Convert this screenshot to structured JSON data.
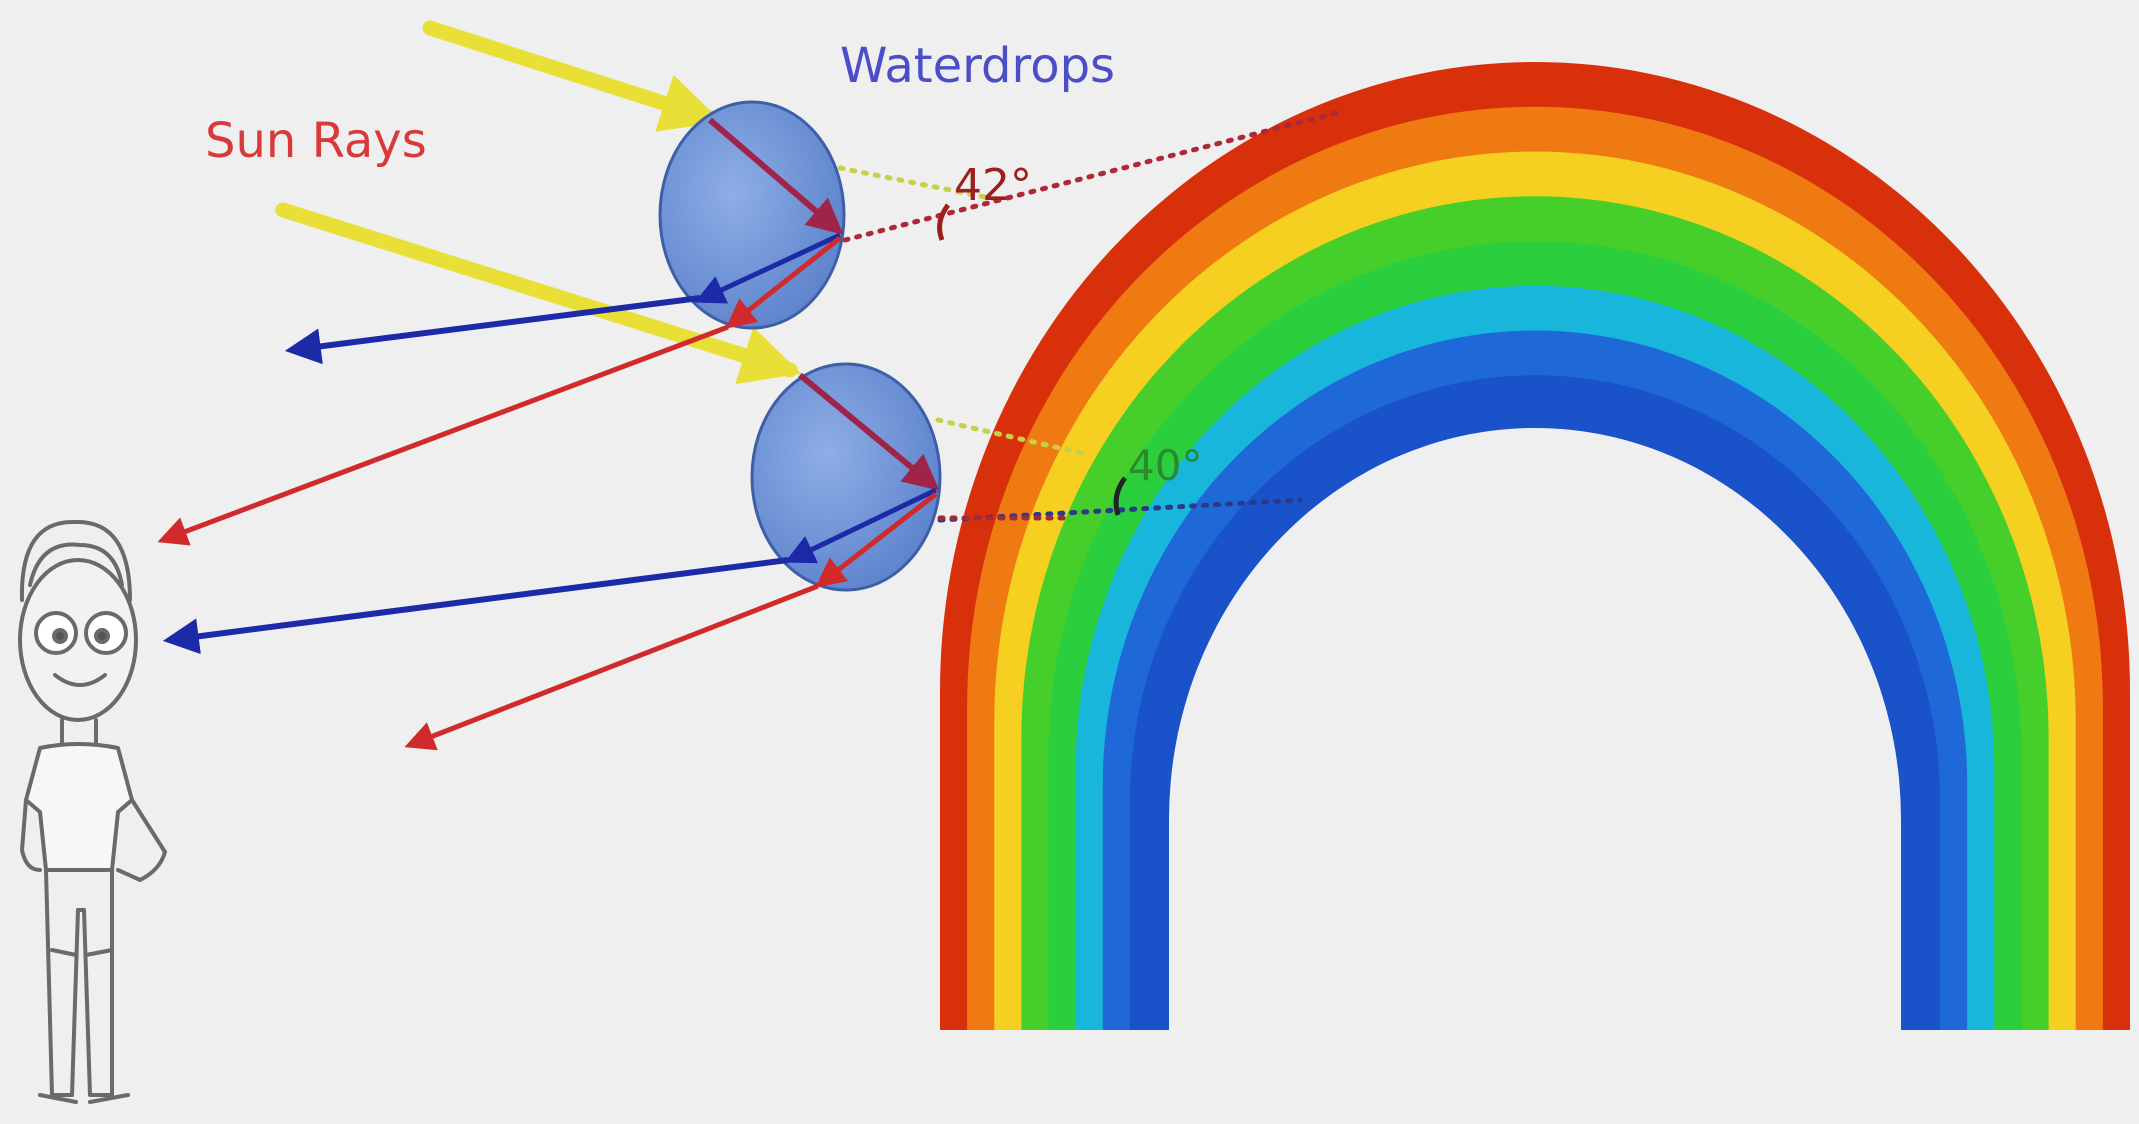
{
  "labels": {
    "sun_rays": "Sun Rays",
    "waterdrops": "Waterdrops",
    "angle_top": "42°",
    "angle_bottom": "40°"
  },
  "colors": {
    "background": "#efefef",
    "sun_rays_text": "#d83a3a",
    "waterdrops_text": "#4a4fc8",
    "sun_ray": "#e8e037",
    "red_light": "#d02a2a",
    "blue_light": "#1c2aa8",
    "drop_fill": "#6f94d8",
    "drop_stroke": "#3d5fa8",
    "angle_text": "#9b1f1f",
    "angle_text_bottom": "#2c8a2c",
    "rainbow_bands": [
      "#d8300a",
      "#f07a12",
      "#f5d020",
      "#46cf2a",
      "#2bcf3d",
      "#19b6dc",
      "#1e68d8",
      "#1a52c9"
    ]
  },
  "icons": {
    "observer": "person-icon",
    "drop": "waterdrop-icon"
  }
}
